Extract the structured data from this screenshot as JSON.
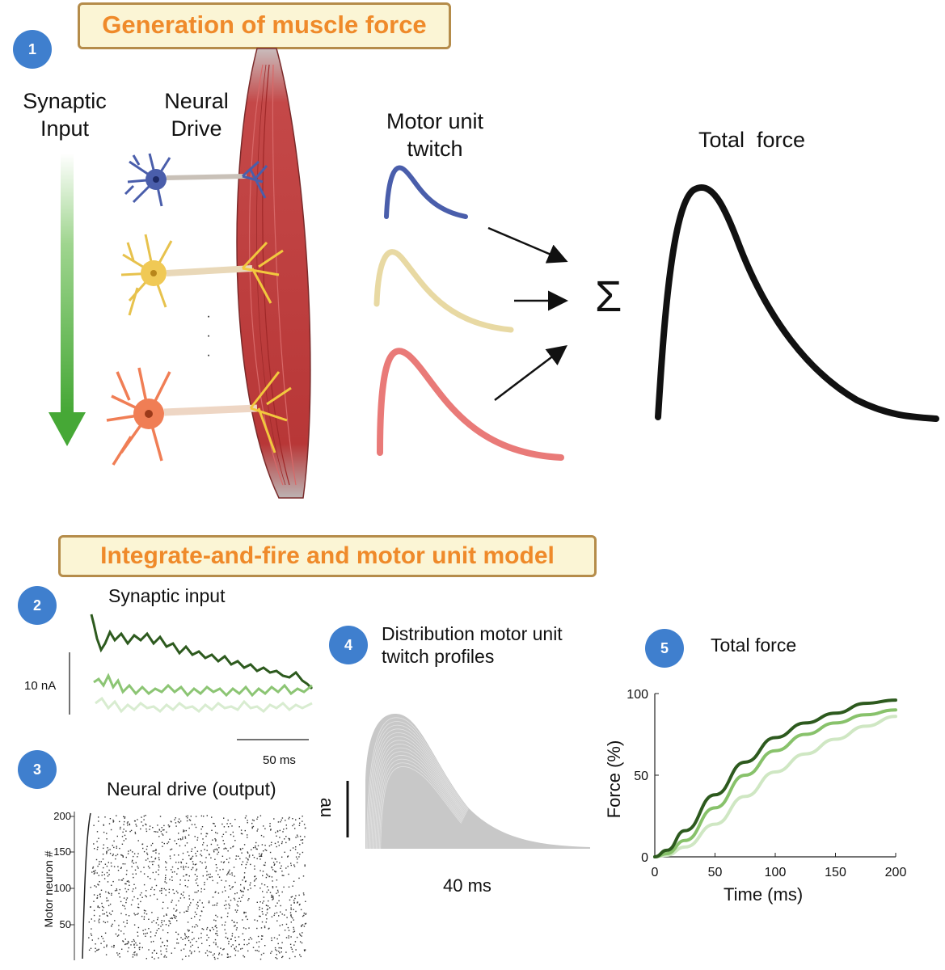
{
  "top": {
    "banner": "Generation of muscle force",
    "step": "1",
    "synaptic_input_l1": "Synaptic",
    "synaptic_input_l2": "Input",
    "neural_drive_l1": "Neural",
    "neural_drive_l2": "Drive",
    "twitch_l1": "Motor unit",
    "twitch_l2": "twitch",
    "sum_symbol": "Σ",
    "total_force": "Total  force",
    "ellipsis": "·\n·\n·",
    "colors": {
      "blue": "#4a5eab",
      "yellow": "#e8d9a3",
      "red": "#e97a78",
      "arrow": "#4cab3b",
      "muscle": "#b83a3a"
    }
  },
  "bottom": {
    "banner": "Integrate-and-fire and motor unit model",
    "panel2": {
      "step": "2",
      "title": "Synaptic input",
      "scale_y": "10 nA",
      "scale_x": "50 ms"
    },
    "panel3": {
      "step": "3",
      "title": "Neural drive (output)",
      "ylabel": "Motor neuron #",
      "yticks": [
        "200",
        "150",
        "100",
        "50"
      ]
    },
    "panel4": {
      "step": "4",
      "title_l1": "Distribution motor unit",
      "title_l2": "twitch profiles",
      "scale_y": "au",
      "scale_x": "40 ms"
    },
    "panel5": {
      "step": "5",
      "title": "Total force"
    }
  },
  "chart_data": {
    "type": "line",
    "xlabel": "Time (ms)",
    "ylabel": "Force (%)",
    "xlim": [
      0,
      200
    ],
    "ylim": [
      0,
      100
    ],
    "xticks": [
      "0",
      "50",
      "100",
      "150",
      "200"
    ],
    "yticks": [
      "0",
      "50",
      "100"
    ],
    "x": [
      0,
      10,
      25,
      50,
      75,
      100,
      125,
      150,
      175,
      200
    ],
    "series": [
      {
        "color": "#2d5a1e",
        "values": [
          0,
          4,
          16,
          38,
          58,
          73,
          82,
          88,
          94,
          96
        ]
      },
      {
        "color": "#88c26b",
        "values": [
          0,
          2,
          10,
          30,
          50,
          65,
          75,
          82,
          87,
          90
        ]
      },
      {
        "color": "#cfe7c3",
        "values": [
          0,
          1,
          6,
          20,
          37,
          52,
          63,
          72,
          80,
          86
        ]
      }
    ]
  }
}
